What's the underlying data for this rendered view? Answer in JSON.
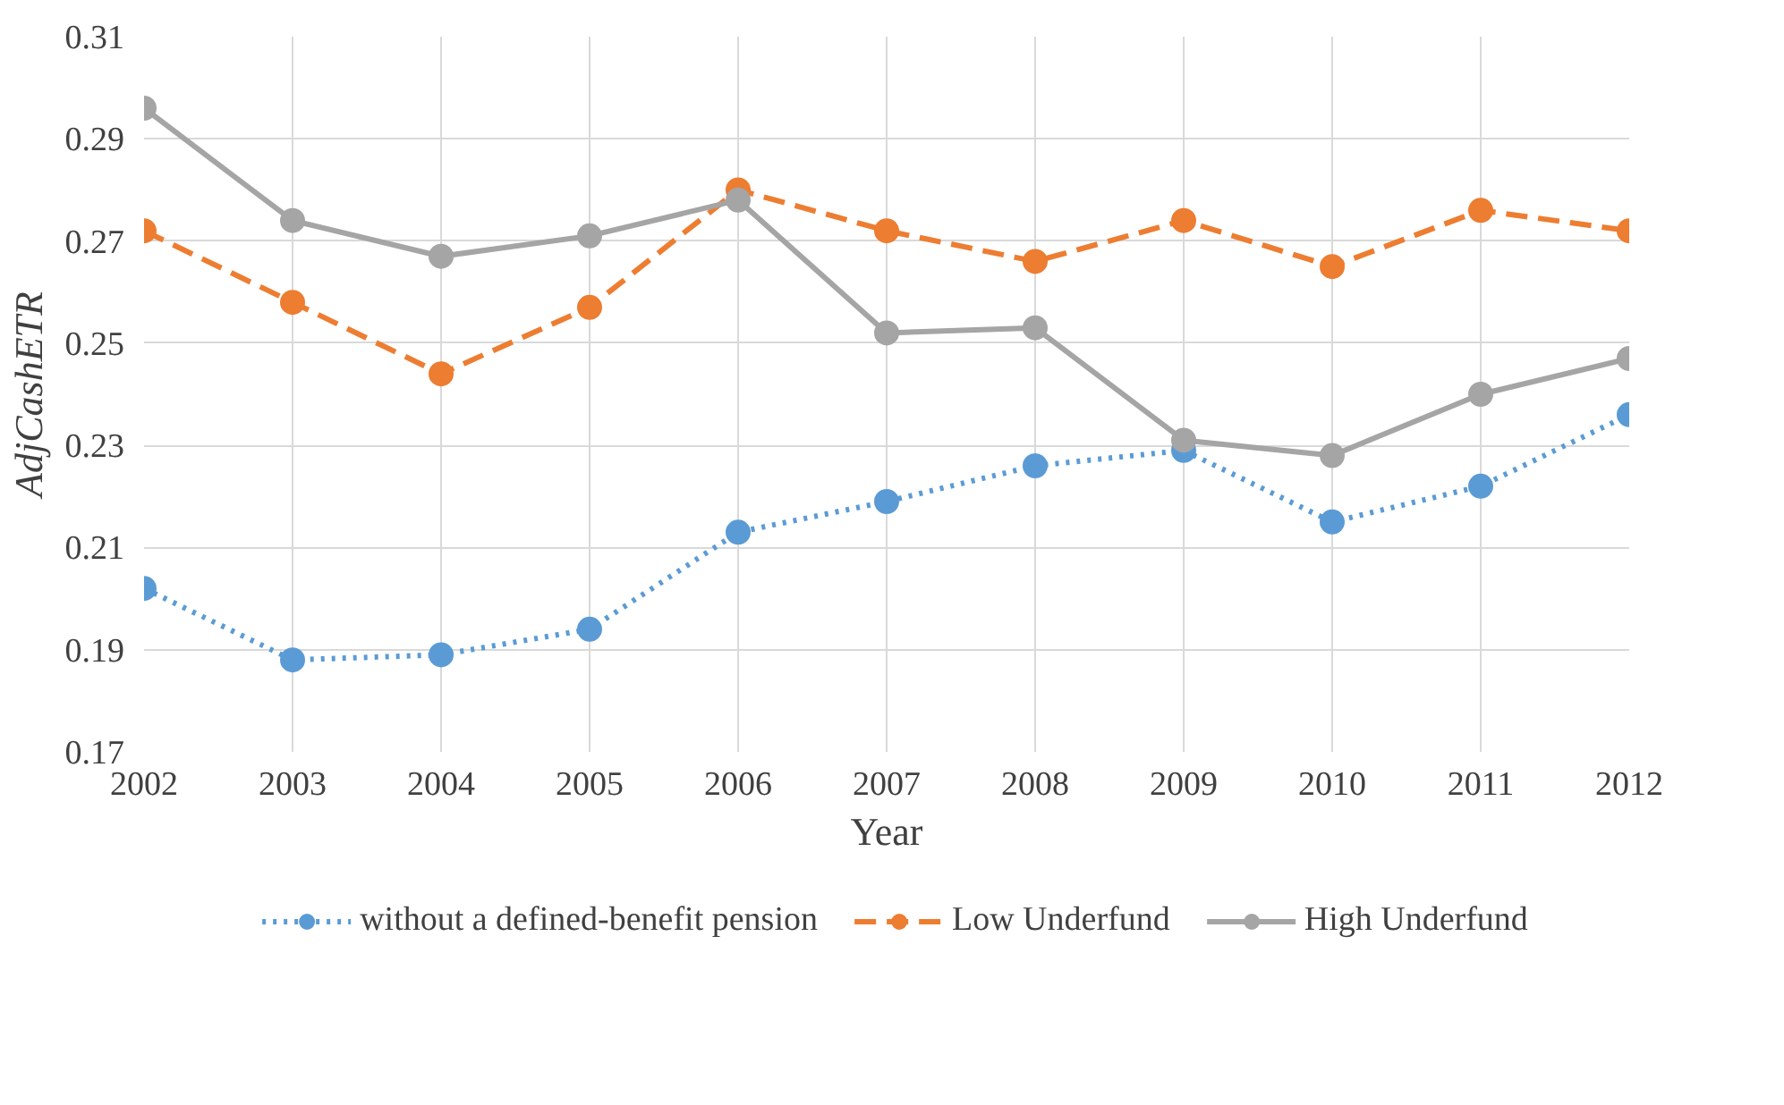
{
  "chart_data": {
    "type": "line",
    "xlabel": "Year",
    "ylabel": "AdjCashETR",
    "x": [
      2002,
      2003,
      2004,
      2005,
      2006,
      2007,
      2008,
      2009,
      2010,
      2011,
      2012
    ],
    "xlim": [
      2002,
      2012
    ],
    "xticks": [
      2002,
      2003,
      2004,
      2005,
      2006,
      2007,
      2008,
      2009,
      2010,
      2011,
      2012
    ],
    "ylim": [
      0.17,
      0.31
    ],
    "yticks": [
      0.17,
      0.19,
      0.21,
      0.23,
      0.25,
      0.27,
      0.29,
      0.31
    ],
    "grid": true,
    "legend": "bottom",
    "marker": "circle",
    "series": [
      {
        "name": "without a defined-benefit pension",
        "color": "#5b9bd5",
        "line_style": "dotted",
        "values": [
          0.202,
          0.188,
          0.189,
          0.194,
          0.213,
          0.219,
          0.226,
          0.229,
          0.215,
          0.222,
          0.236
        ]
      },
      {
        "name": "Low Underfund",
        "color": "#ed7d31",
        "line_style": "dashed",
        "values": [
          0.272,
          0.258,
          0.244,
          0.257,
          0.28,
          0.272,
          0.266,
          0.274,
          0.265,
          0.276,
          0.272
        ]
      },
      {
        "name": "High Underfund",
        "color": "#a5a5a5",
        "line_style": "solid",
        "values": [
          0.296,
          0.274,
          0.267,
          0.271,
          0.278,
          0.252,
          0.253,
          0.231,
          0.228,
          0.24,
          0.247
        ]
      }
    ]
  }
}
